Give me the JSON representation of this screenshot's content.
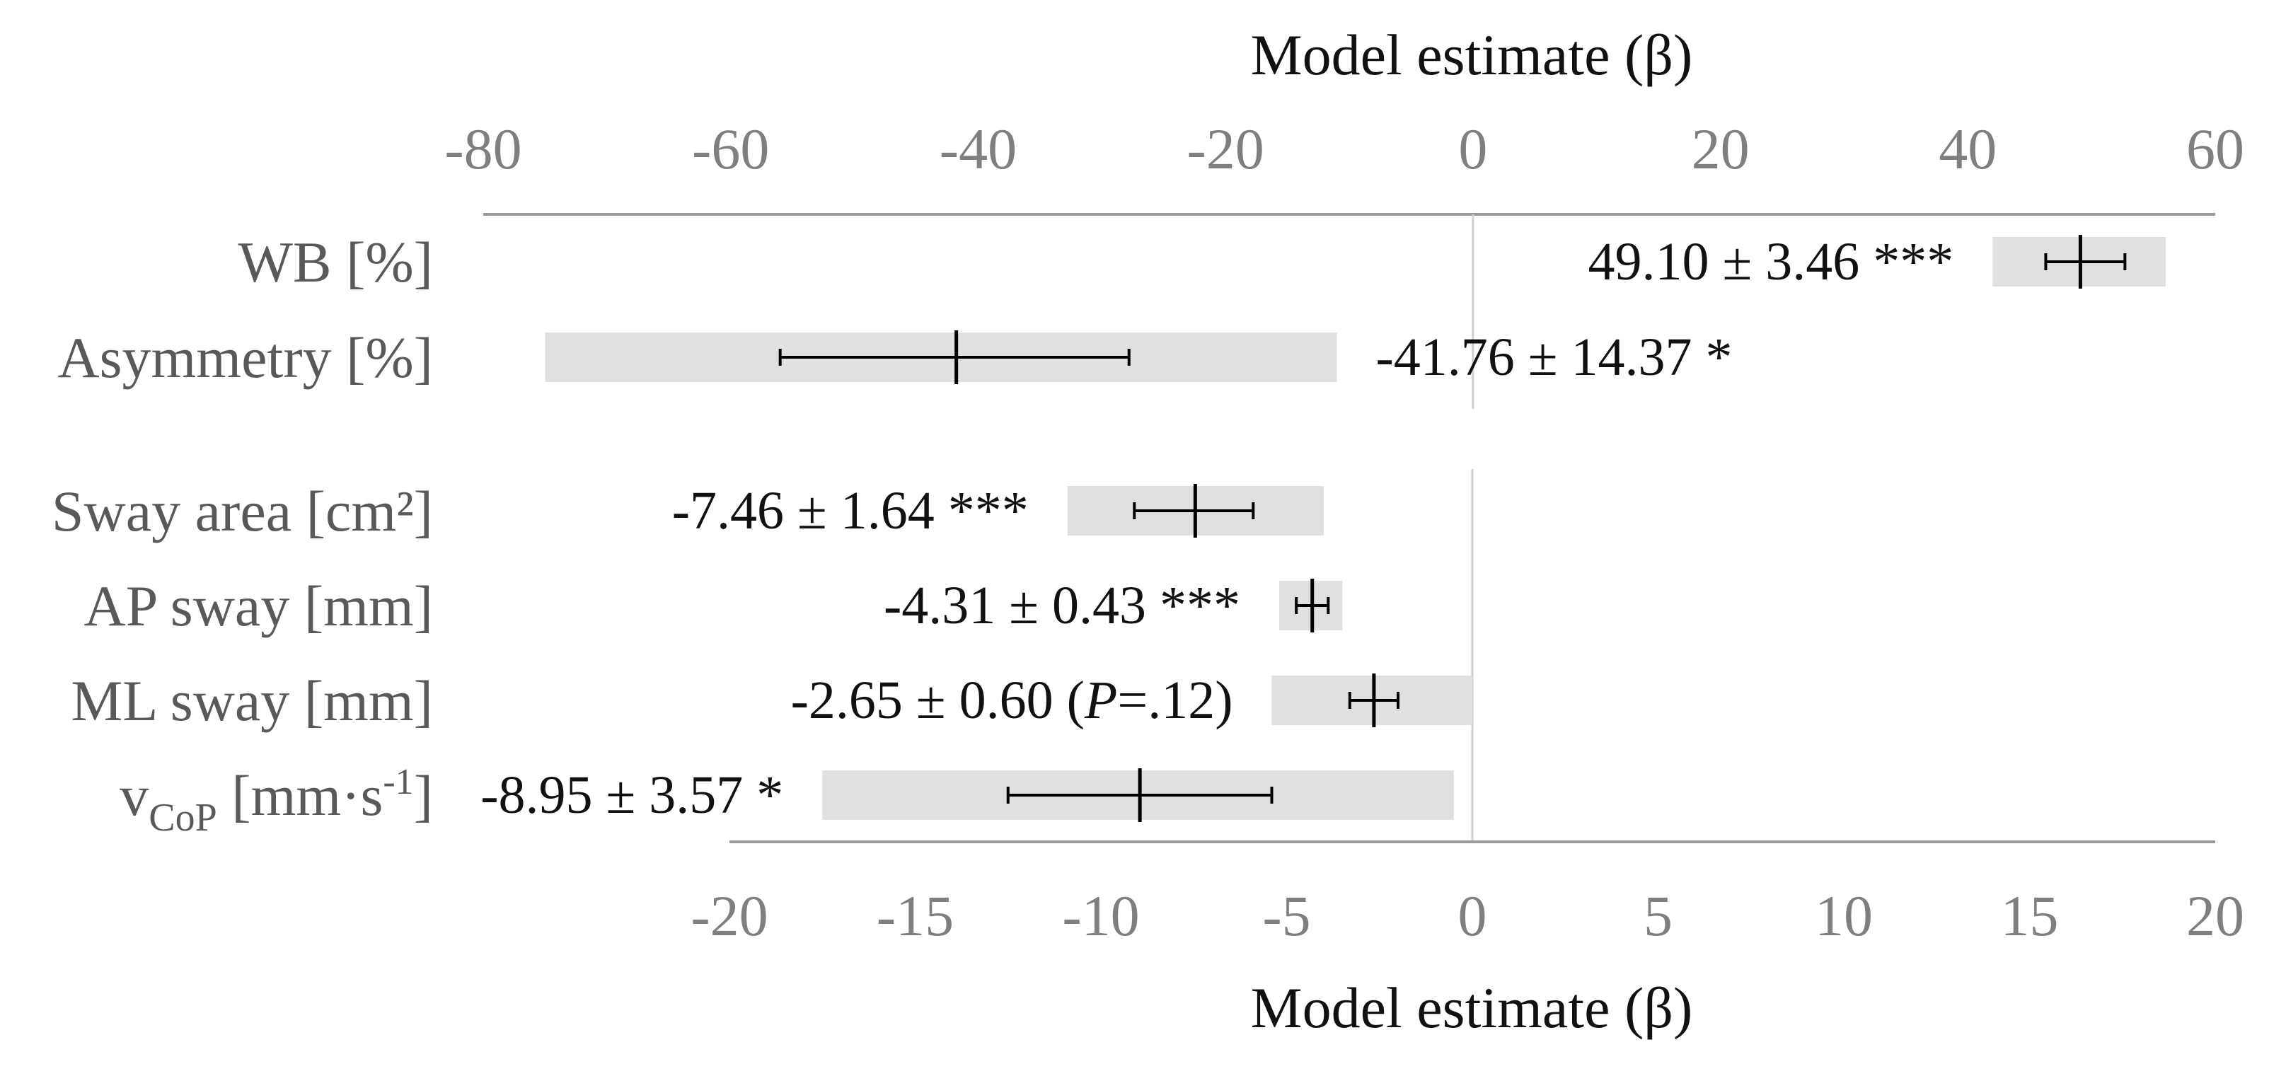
{
  "chart_data": [
    {
      "type": "bar",
      "panel": "top",
      "xlabel": "Model estimate (β)",
      "xlim": [
        -80,
        60
      ],
      "xticks": [
        -80,
        -60,
        -40,
        -20,
        0,
        20,
        40,
        60
      ],
      "xtick_labels": [
        "-80",
        "-60",
        "-40",
        "-20",
        "0",
        "20",
        "40",
        "60"
      ],
      "axis_position": "top",
      "categories": [
        "WB [%]",
        "Asymmetry [%]"
      ],
      "rows": [
        {
          "label": "WB [%]",
          "estimate": 49.1,
          "ci": [
            42.0,
            56.0
          ],
          "range": [
            46.3,
            52.7
          ],
          "annotation": "49.10 ± 3.46 ***",
          "annotation_side": "left"
        },
        {
          "label": "Asymmetry [%]",
          "estimate": -41.76,
          "ci": [
            -75.0,
            -11.0
          ],
          "range": [
            -56.0,
            -27.8
          ],
          "annotation": "-41.76 ± 14.37 *",
          "annotation_side": "right"
        }
      ]
    },
    {
      "type": "bar",
      "panel": "bottom",
      "xlabel": "Model estimate (β)",
      "xlim": [
        -20,
        20
      ],
      "xticks": [
        -20,
        -15,
        -10,
        -5,
        0,
        5,
        10,
        15,
        20
      ],
      "xtick_labels": [
        "-20",
        "-15",
        "-10",
        "-5",
        "0",
        "5",
        "10",
        "15",
        "20"
      ],
      "axis_position": "bottom",
      "categories": [
        "Sway area [cm²]",
        "AP sway [mm]",
        "ML sway [mm]",
        "vCoP [mm·s⁻¹]"
      ],
      "rows": [
        {
          "label": "Sway area [cm²]",
          "estimate": -7.46,
          "ci": [
            -10.9,
            -4.0
          ],
          "range": [
            -9.1,
            -5.9
          ],
          "annotation": "-7.46 ± 1.64 ***",
          "annotation_side": "left"
        },
        {
          "label": "AP sway [mm]",
          "estimate": -4.31,
          "ci": [
            -5.2,
            -3.5
          ],
          "range": [
            -4.74,
            -3.88
          ],
          "annotation": "-4.31 ± 0.43 ***",
          "annotation_side": "left"
        },
        {
          "label": "ML sway [mm]",
          "estimate": -2.65,
          "ci": [
            -5.4,
            0.0
          ],
          "range": [
            -3.3,
            -2.0
          ],
          "annotation": "-2.65 ± 0.60 (",
          "annotation_italic": "P",
          "annotation_tail": "=.12)",
          "annotation_side": "left"
        },
        {
          "label": "vCoP [mm·s⁻¹]",
          "label_main": "v",
          "label_sub": "CoP",
          "label_unit": " [mm·s",
          "label_sup": "-1",
          "label_close": "]",
          "estimate": -8.95,
          "ci": [
            -17.5,
            -0.5
          ],
          "range": [
            -12.5,
            -5.4
          ],
          "annotation": "-8.95 ± 3.57 *",
          "annotation_side": "left"
        }
      ]
    }
  ]
}
